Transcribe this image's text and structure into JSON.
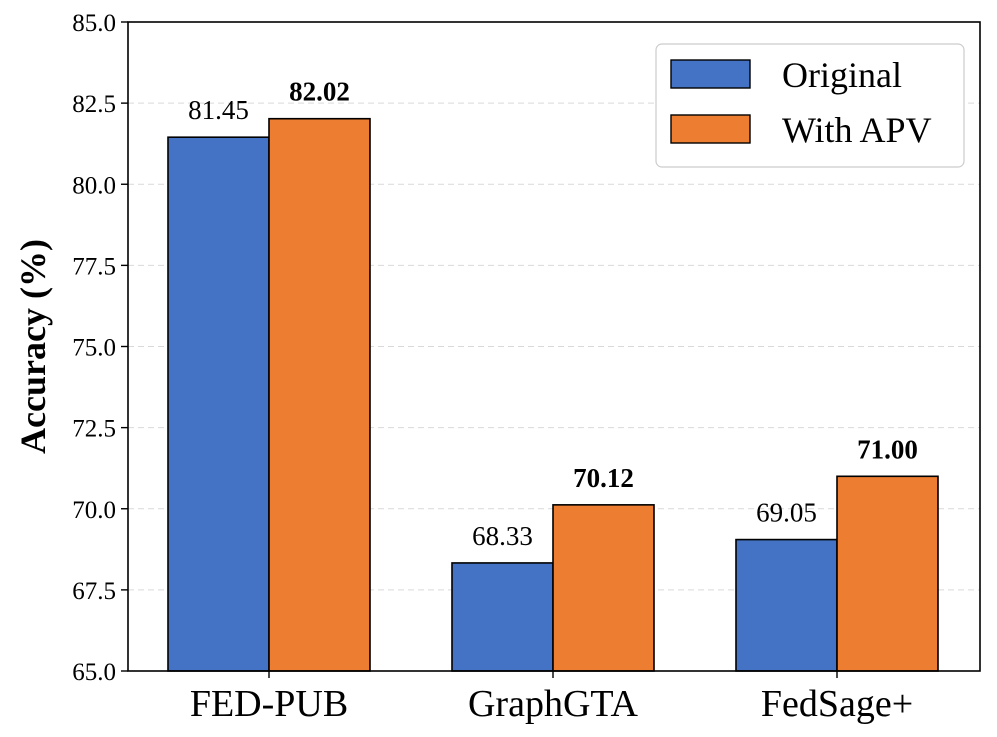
{
  "chart_data": {
    "type": "bar",
    "title": "",
    "xlabel": "",
    "ylabel": "Accuracy (%)",
    "ylim": [
      65.0,
      85.0
    ],
    "yticks": [
      65.0,
      67.5,
      70.0,
      72.5,
      75.0,
      77.5,
      80.0,
      82.5,
      85.0
    ],
    "ytick_labels": [
      "65.0",
      "67.5",
      "70.0",
      "72.5",
      "75.0",
      "77.5",
      "80.0",
      "82.5",
      "85.0"
    ],
    "categories": [
      "FED-PUB",
      "GraphGTA",
      "FedSage+"
    ],
    "series": [
      {
        "name": "Original",
        "color": "#4472C4",
        "values": [
          81.45,
          68.33,
          69.05
        ],
        "labels": [
          "81.45",
          "68.33",
          "69.05"
        ],
        "label_bold": false
      },
      {
        "name": "With APV",
        "color": "#ED7D31",
        "values": [
          82.02,
          70.12,
          71.0
        ],
        "labels": [
          "82.02",
          "70.12",
          "71.00"
        ],
        "label_bold": true
      }
    ],
    "grid": "y-dashed",
    "legend_position": "top-right"
  }
}
